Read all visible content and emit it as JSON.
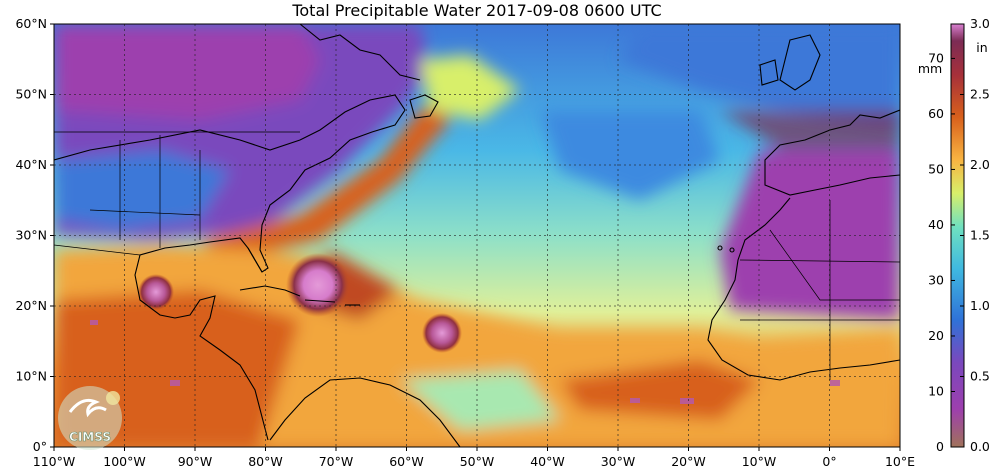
{
  "title": "Total Precipitable Water  2017-09-08 0600 UTC",
  "map": {
    "lon_range": [
      -110,
      10
    ],
    "lat_range": [
      0,
      60
    ],
    "lon_ticks": [
      "110°W",
      "100°W",
      "90°W",
      "80°W",
      "70°W",
      "60°W",
      "50°W",
      "40°W",
      "30°W",
      "20°W",
      "10°W",
      "0°",
      "10°E"
    ],
    "lat_ticks": [
      "0°",
      "10°N",
      "20°N",
      "30°N",
      "40°N",
      "50°N",
      "60°N"
    ],
    "grid": true,
    "logo_text": "CIMSS"
  },
  "colorbar": {
    "mm_unit": "mm",
    "in_unit": "in",
    "mm_ticks": [
      "0",
      "10",
      "20",
      "30",
      "40",
      "50",
      "60",
      "70"
    ],
    "in_ticks": [
      "0.0",
      "0.5",
      "1.0",
      "1.5",
      "2.0",
      "2.5",
      "3.0"
    ],
    "mm_range": [
      0,
      76.2
    ],
    "colors": [
      "#a0725a",
      "#9d3fae",
      "#7a48bd",
      "#2f72d8",
      "#3fb8e0",
      "#6fe0c0",
      "#d8ef6a",
      "#f8b341",
      "#d8601c",
      "#a6303a",
      "#7c2c55",
      "#d880d0"
    ]
  }
}
